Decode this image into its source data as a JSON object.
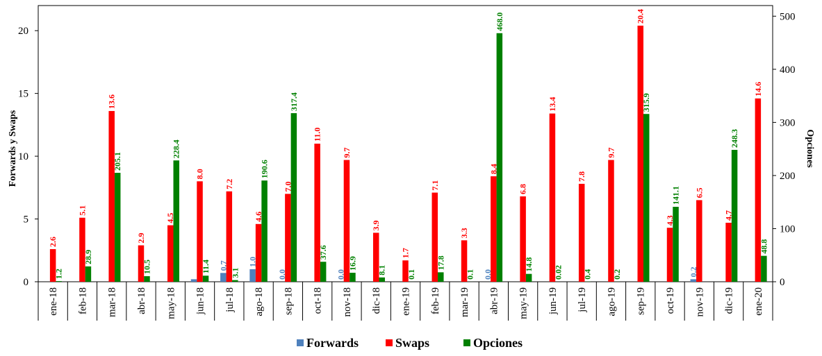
{
  "chart_data": {
    "type": "bar",
    "title": "",
    "xlabel": "",
    "ylabel": "Forwards y Swaps",
    "y2label": "Opciones",
    "ylim": [
      0,
      22
    ],
    "yticks": [
      0,
      5,
      10,
      15,
      20
    ],
    "y2lim": [
      0,
      520
    ],
    "y2ticks": [
      0,
      100,
      200,
      300,
      400,
      500
    ],
    "grid": false,
    "legend_position": "bottom",
    "categories": [
      "ene-18",
      "feb-18",
      "mar-18",
      "abr-18",
      "may-18",
      "jun-18",
      "jul-18",
      "ago-18",
      "sep-18",
      "oct-18",
      "nov-18",
      "dic-18",
      "ene-19",
      "feb-19",
      "mar-19",
      "abr-19",
      "may-19",
      "jun-19",
      "jul-19",
      "ago-19",
      "sep-19",
      "oct-19",
      "nov-19",
      "dic-19",
      "ene-20"
    ],
    "series": [
      {
        "name": "Forwards",
        "axis": "left",
        "color": "#4F81BD",
        "values": [
          0,
          0,
          0,
          0,
          0,
          0.2,
          0.7,
          1.0,
          0,
          0,
          0,
          0,
          0,
          0,
          0,
          0,
          0,
          0,
          0,
          0,
          0,
          0,
          0.2,
          0,
          0
        ],
        "labels": [
          "",
          "",
          "",
          "",
          "",
          "",
          "0.7",
          "1.0",
          "0.0",
          "",
          "0.0",
          "",
          "",
          "",
          "",
          "0.0",
          "",
          "",
          "",
          "",
          "",
          "",
          "0.2",
          "",
          ""
        ]
      },
      {
        "name": "Swaps",
        "axis": "left",
        "color": "#FF0000",
        "values": [
          2.6,
          5.1,
          13.6,
          2.9,
          4.5,
          8.0,
          7.2,
          4.6,
          7.0,
          11.0,
          9.7,
          3.9,
          1.7,
          7.1,
          3.3,
          8.4,
          6.8,
          13.4,
          7.8,
          9.7,
          20.4,
          4.3,
          6.5,
          4.7,
          14.6
        ],
        "labels": [
          "2.6",
          "5.1",
          "13.6",
          "2.9",
          "4.5",
          "8.0",
          "7.2",
          "4.6",
          "7.0",
          "11.0",
          "9.7",
          "3.9",
          "1.7",
          "7.1",
          "3.3",
          "8.4",
          "6.8",
          "13.4",
          "7.8",
          "9.7",
          "20.4",
          "4.3",
          "6.5",
          "4.7",
          "14.6"
        ]
      },
      {
        "name": "Opciones",
        "axis": "right",
        "color": "#008000",
        "values": [
          1.2,
          28.9,
          205.1,
          10.5,
          228.4,
          11.4,
          3.1,
          190.6,
          317.4,
          37.6,
          16.9,
          8.1,
          0.1,
          17.8,
          0.1,
          468.0,
          14.8,
          0.02,
          0.4,
          0.2,
          315.9,
          141.1,
          0,
          248.3,
          48.8
        ],
        "labels": [
          "1.2",
          "28.9",
          "205.1",
          "10.5",
          "228.4",
          "11.4",
          "3.1",
          "190.6",
          "317.4",
          "37.6",
          "16.9",
          "8.1",
          "0.1",
          "17.8",
          "0.1",
          "468.0",
          "14.8",
          "0.02",
          "0.4",
          "0.2",
          "315.9",
          "141.1",
          "",
          "248.3",
          "48.8"
        ]
      }
    ]
  }
}
